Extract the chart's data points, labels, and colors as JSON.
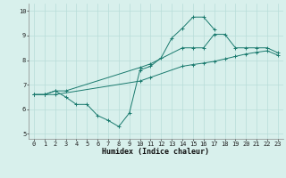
{
  "line1_x": [
    0,
    1,
    2,
    3,
    4,
    5,
    6,
    7,
    8,
    9,
    10,
    11,
    12,
    13,
    14,
    15,
    16,
    17
  ],
  "line1_y": [
    6.6,
    6.6,
    6.75,
    6.5,
    6.2,
    6.2,
    5.75,
    5.55,
    5.3,
    5.85,
    7.6,
    7.75,
    8.1,
    8.9,
    9.3,
    9.75,
    9.75,
    9.25
  ],
  "line2_x": [
    0,
    1,
    2,
    3,
    10,
    11,
    14,
    15,
    16,
    17,
    18,
    19,
    20,
    21,
    22,
    23
  ],
  "line2_y": [
    6.6,
    6.6,
    6.75,
    6.75,
    7.7,
    7.85,
    8.5,
    8.5,
    8.5,
    9.05,
    9.05,
    8.5,
    8.5,
    8.5,
    8.5,
    8.3
  ],
  "line3_x": [
    0,
    1,
    2,
    10,
    11,
    14,
    15,
    16,
    17,
    18,
    19,
    20,
    21,
    22,
    23
  ],
  "line3_y": [
    6.6,
    6.6,
    6.6,
    7.15,
    7.3,
    7.75,
    7.82,
    7.88,
    7.95,
    8.05,
    8.15,
    8.25,
    8.32,
    8.38,
    8.2
  ],
  "color": "#1a7a6e",
  "bg_color": "#d8f0ec",
  "grid_color": "#b8ddd8",
  "xlabel": "Humidex (Indice chaleur)",
  "ylim": [
    4.8,
    10.3
  ],
  "xlim": [
    -0.5,
    23.5
  ],
  "yticks": [
    5,
    6,
    7,
    8,
    9,
    10
  ],
  "xticks": [
    0,
    1,
    2,
    3,
    4,
    5,
    6,
    7,
    8,
    9,
    10,
    11,
    12,
    13,
    14,
    15,
    16,
    17,
    18,
    19,
    20,
    21,
    22,
    23
  ]
}
